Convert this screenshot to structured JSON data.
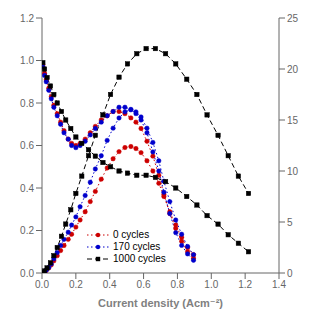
{
  "chart_data": {
    "type": "line",
    "xlabel": "Current density (Acm⁻²)",
    "xlim": [
      0.0,
      1.4
    ],
    "ylim": [
      0.0,
      1.2
    ],
    "y2lim": [
      0,
      25
    ],
    "xticks": [
      {
        "value": 0.0,
        "label": "0.0"
      },
      0.2,
      0.4,
      0.6,
      0.8,
      {
        "value": 1.0,
        "label": "1.0"
      },
      1.2,
      1.4
    ],
    "yticks": [
      {
        "value": 0.0,
        "label": "0.0"
      },
      0.2,
      0.4,
      0.6,
      0.8,
      {
        "value": 1.0,
        "label": "1.0"
      },
      1.2
    ],
    "y2ticks": [
      0,
      5,
      10,
      15,
      20,
      25
    ],
    "grid": false,
    "legend": "lower left",
    "series": [
      {
        "name": "0 cycles",
        "color": "#cc0000",
        "marker": "o",
        "line_style": "dotted",
        "axis": "y",
        "x": [
          0.005,
          0.015,
          0.025,
          0.04,
          0.055,
          0.07,
          0.09,
          0.11,
          0.13,
          0.155,
          0.175,
          0.2,
          0.225,
          0.255,
          0.285,
          0.315,
          0.35,
          0.385,
          0.42,
          0.455,
          0.49,
          0.525,
          0.555,
          0.585,
          0.62,
          0.655,
          0.69,
          0.72,
          0.755,
          0.79,
          0.825,
          0.86,
          0.895
        ],
        "values": [
          0.98,
          0.94,
          0.91,
          0.87,
          0.83,
          0.79,
          0.75,
          0.71,
          0.67,
          0.63,
          0.61,
          0.6,
          0.61,
          0.63,
          0.66,
          0.69,
          0.72,
          0.74,
          0.76,
          0.76,
          0.75,
          0.73,
          0.71,
          0.68,
          0.62,
          0.55,
          0.46,
          0.37,
          0.28,
          0.21,
          0.15,
          0.1,
          0.07
        ]
      },
      {
        "name": "0 cycles",
        "color": "#cc0000",
        "marker": "o",
        "line_style": "dotted",
        "axis": "y2",
        "x": [
          0.005,
          0.015,
          0.025,
          0.04,
          0.055,
          0.07,
          0.09,
          0.11,
          0.13,
          0.155,
          0.175,
          0.2,
          0.225,
          0.255,
          0.285,
          0.315,
          0.35,
          0.385,
          0.42,
          0.455,
          0.49,
          0.525,
          0.555,
          0.585,
          0.62,
          0.655,
          0.69,
          0.72,
          0.755,
          0.79,
          0.825,
          0.86,
          0.895
        ],
        "values": [
          0.05,
          0.15,
          0.25,
          0.5,
          0.8,
          1.2,
          1.7,
          2.2,
          2.7,
          3.3,
          3.8,
          4.5,
          5.2,
          6.0,
          7.0,
          8.0,
          9.2,
          10.3,
          11.2,
          11.9,
          12.3,
          12.4,
          12.2,
          11.8,
          11.0,
          10.0,
          8.8,
          7.5,
          6.0,
          4.7,
          3.5,
          2.5,
          1.8
        ]
      },
      {
        "name": "170 cycles",
        "color": "#0000cc",
        "marker": "o",
        "line_style": "dotted",
        "axis": "y",
        "x": [
          0.005,
          0.015,
          0.025,
          0.04,
          0.055,
          0.07,
          0.09,
          0.11,
          0.13,
          0.155,
          0.175,
          0.2,
          0.225,
          0.255,
          0.285,
          0.315,
          0.35,
          0.385,
          0.42,
          0.455,
          0.49,
          0.525,
          0.555,
          0.585,
          0.62,
          0.655,
          0.69,
          0.72,
          0.755,
          0.79,
          0.825,
          0.86,
          0.895
        ],
        "values": [
          0.97,
          0.93,
          0.9,
          0.86,
          0.82,
          0.78,
          0.74,
          0.7,
          0.66,
          0.63,
          0.6,
          0.59,
          0.6,
          0.62,
          0.65,
          0.68,
          0.71,
          0.74,
          0.76,
          0.78,
          0.78,
          0.77,
          0.75,
          0.72,
          0.66,
          0.57,
          0.48,
          0.38,
          0.28,
          0.19,
          0.13,
          0.09,
          0.06
        ]
      },
      {
        "name": "170 cycles",
        "color": "#0000cc",
        "marker": "o",
        "line_style": "dotted",
        "axis": "y2",
        "x": [
          0.005,
          0.015,
          0.025,
          0.04,
          0.055,
          0.07,
          0.09,
          0.11,
          0.13,
          0.155,
          0.175,
          0.2,
          0.225,
          0.255,
          0.285,
          0.315,
          0.35,
          0.385,
          0.42,
          0.455,
          0.49,
          0.525,
          0.555,
          0.585,
          0.62,
          0.655,
          0.69,
          0.72,
          0.755,
          0.79,
          0.825,
          0.86,
          0.895
        ],
        "values": [
          0.05,
          0.15,
          0.28,
          0.55,
          0.9,
          1.4,
          2.0,
          2.7,
          3.3,
          4.0,
          4.7,
          5.5,
          6.5,
          7.6,
          8.9,
          10.2,
          11.5,
          13.0,
          14.2,
          15.2,
          15.8,
          16.0,
          15.8,
          15.3,
          14.2,
          12.8,
          11.0,
          9.0,
          7.0,
          5.2,
          3.8,
          2.6,
          1.8
        ]
      },
      {
        "name": "1000 cycles",
        "color": "#000000",
        "marker": "s",
        "line_style": "dashed",
        "axis": "y",
        "x": [
          0.005,
          0.015,
          0.03,
          0.05,
          0.07,
          0.09,
          0.115,
          0.14,
          0.17,
          0.2,
          0.235,
          0.275,
          0.315,
          0.36,
          0.405,
          0.455,
          0.505,
          0.56,
          0.615,
          0.67,
          0.73,
          0.79,
          0.855,
          0.915,
          0.975,
          1.04,
          1.1,
          1.16,
          1.22
        ],
        "values": [
          0.99,
          0.96,
          0.92,
          0.88,
          0.84,
          0.8,
          0.76,
          0.72,
          0.68,
          0.64,
          0.61,
          0.58,
          0.55,
          0.52,
          0.5,
          0.48,
          0.47,
          0.46,
          0.46,
          0.45,
          0.43,
          0.4,
          0.36,
          0.32,
          0.27,
          0.23,
          0.18,
          0.14,
          0.1
        ]
      },
      {
        "name": "1000 cycles",
        "color": "#000000",
        "marker": "s",
        "line_style": "dashed",
        "axis": "y2",
        "x": [
          0.005,
          0.015,
          0.03,
          0.05,
          0.07,
          0.09,
          0.115,
          0.14,
          0.17,
          0.2,
          0.235,
          0.275,
          0.315,
          0.36,
          0.405,
          0.455,
          0.505,
          0.56,
          0.615,
          0.67,
          0.73,
          0.79,
          0.855,
          0.915,
          0.975,
          1.04,
          1.1,
          1.16,
          1.22
        ],
        "values": [
          0.05,
          0.2,
          0.5,
          1.0,
          1.7,
          2.5,
          3.6,
          4.8,
          6.2,
          7.8,
          9.5,
          11.5,
          13.5,
          15.5,
          17.5,
          19.2,
          20.5,
          21.5,
          22.0,
          22.0,
          21.5,
          20.5,
          19.0,
          17.5,
          15.5,
          13.5,
          11.5,
          9.5,
          7.8
        ]
      }
    ]
  }
}
